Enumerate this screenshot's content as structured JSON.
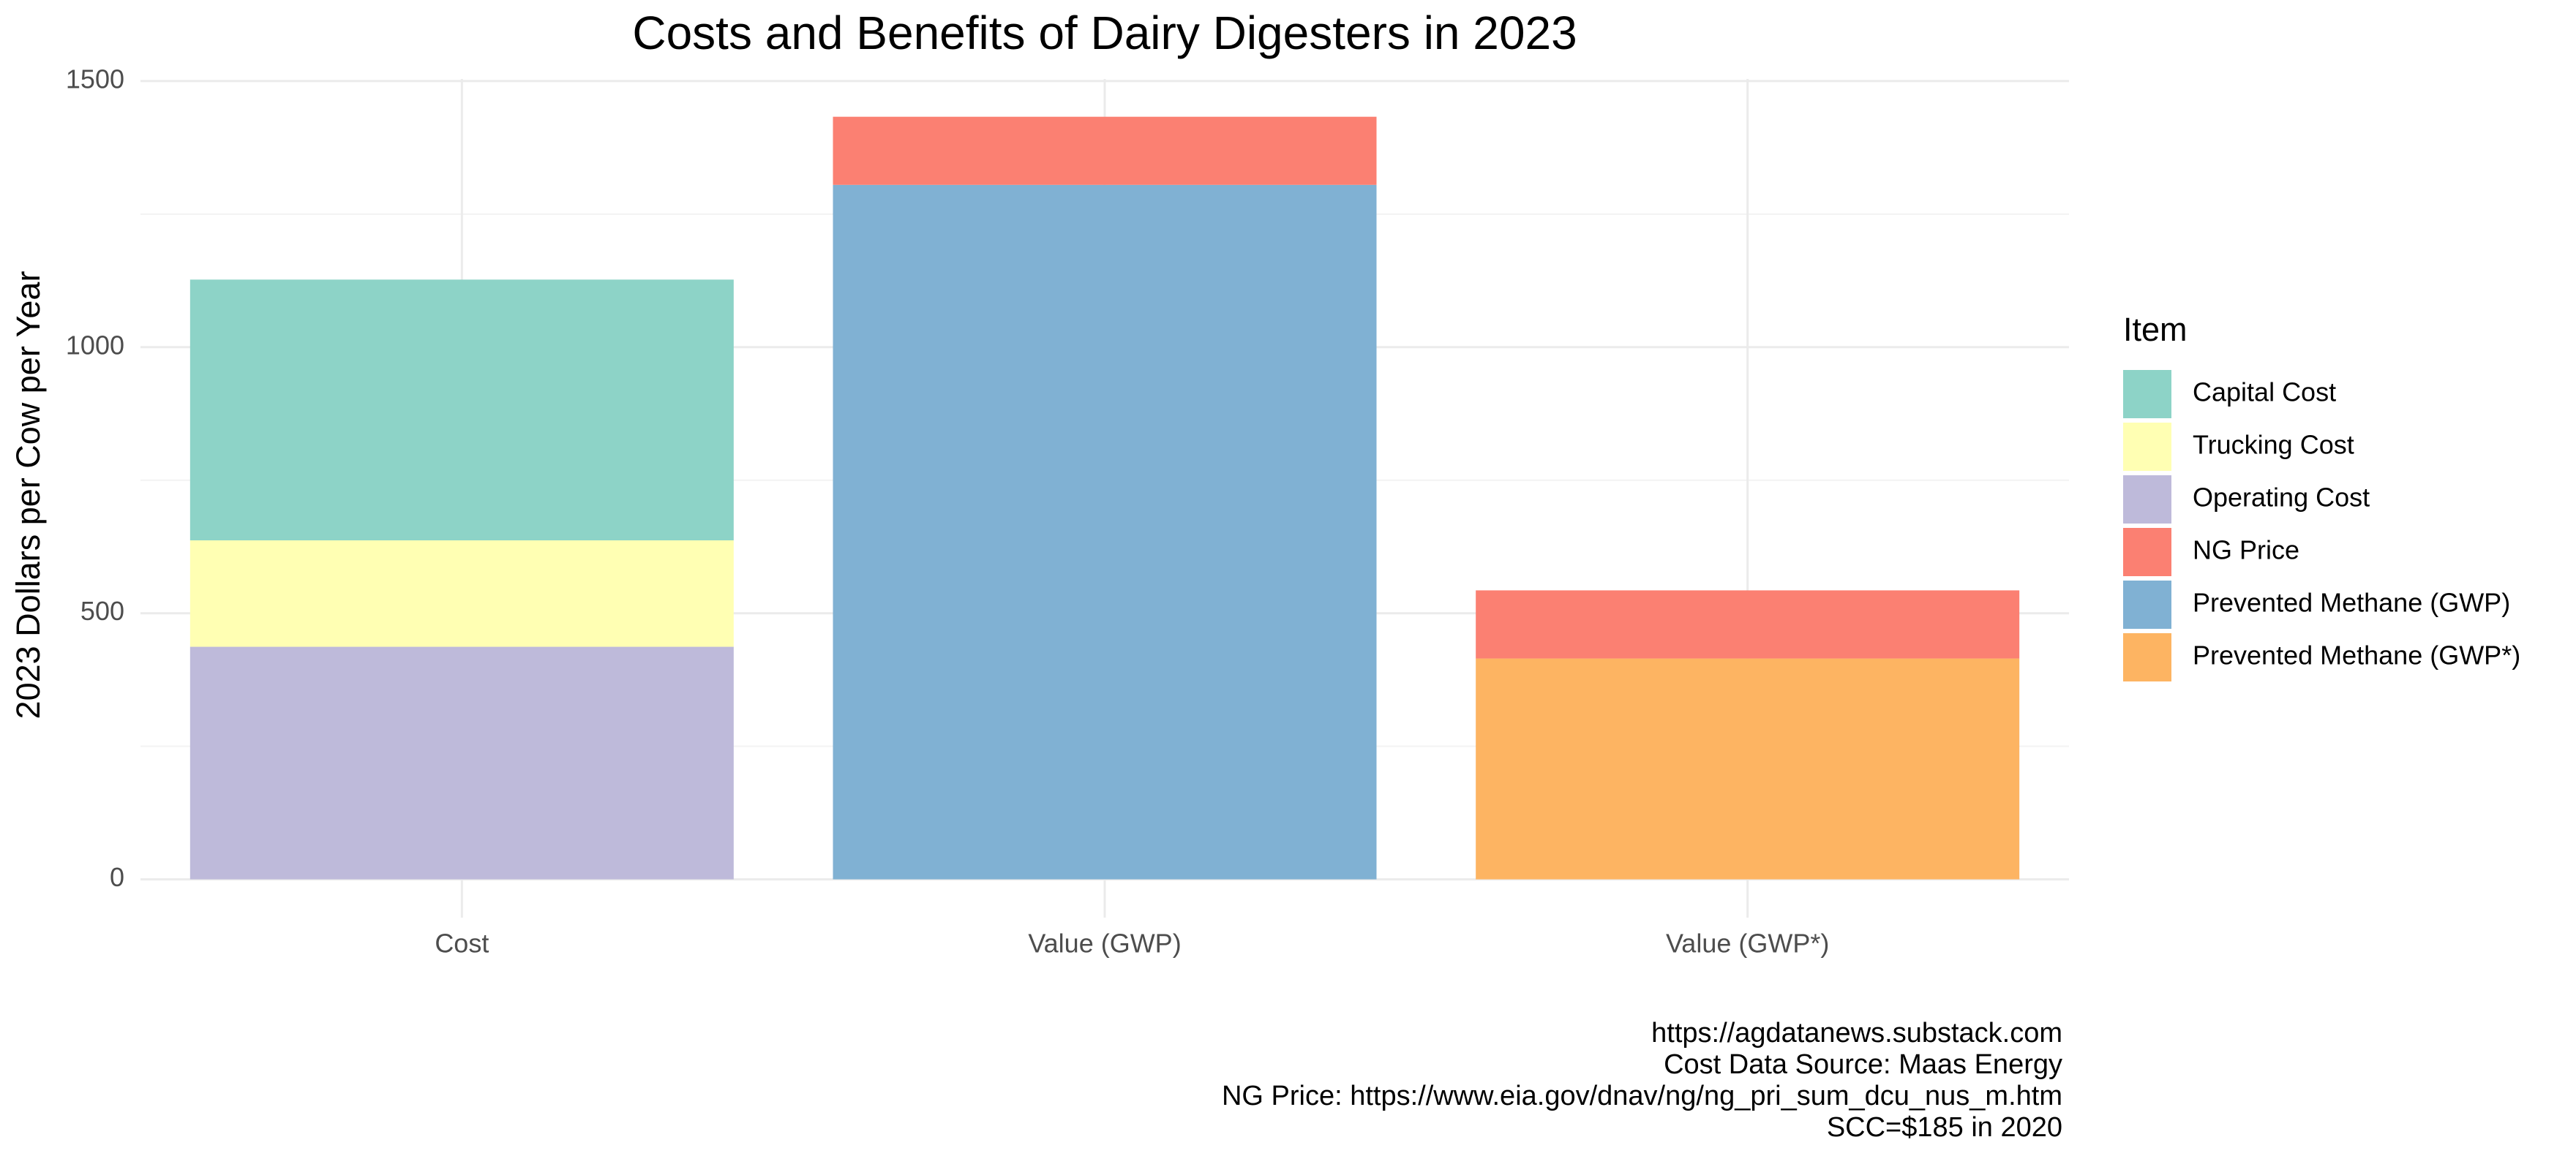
{
  "chart_data": {
    "type": "stacked_bar",
    "title": "Costs and Benefits of Dairy Digesters in 2023",
    "y_label": "2023 Dollars per Cow per Year",
    "legend_title": "Item",
    "caption": [
      "https://agdatanews.substack.com",
      "Cost Data Source: Maas Energy",
      "NG Price: https://www.eia.gov/dnav/ng/ng_pri_sum_dcu_nus_m.htm",
      "SCC=$185 in 2020"
    ],
    "categories": [
      "Cost",
      "Value (GWP)",
      "Value (GWP*)"
    ],
    "series": [
      {
        "name": "Capital Cost",
        "color": "#8dd3c7",
        "values": [
          490,
          null,
          null
        ]
      },
      {
        "name": "Trucking Cost",
        "color": "#ffffb3",
        "values": [
          200,
          null,
          null
        ]
      },
      {
        "name": "Operating Cost",
        "color": "#bebada",
        "values": [
          437,
          null,
          null
        ]
      },
      {
        "name": "NG Price",
        "color": "#fb8072",
        "values": [
          null,
          128,
          128
        ]
      },
      {
        "name": "Prevented Methane (GWP)",
        "color": "#80b1d3",
        "values": [
          null,
          1305,
          null
        ]
      },
      {
        "name": "Prevented Methane (GWP*)",
        "color": "#fdb462",
        "values": [
          null,
          null,
          415
        ]
      }
    ],
    "ylim": [
      -72,
      1504
    ],
    "yticks": [
      0,
      500,
      1000,
      1500
    ],
    "grid": true,
    "legend_position": "right"
  }
}
